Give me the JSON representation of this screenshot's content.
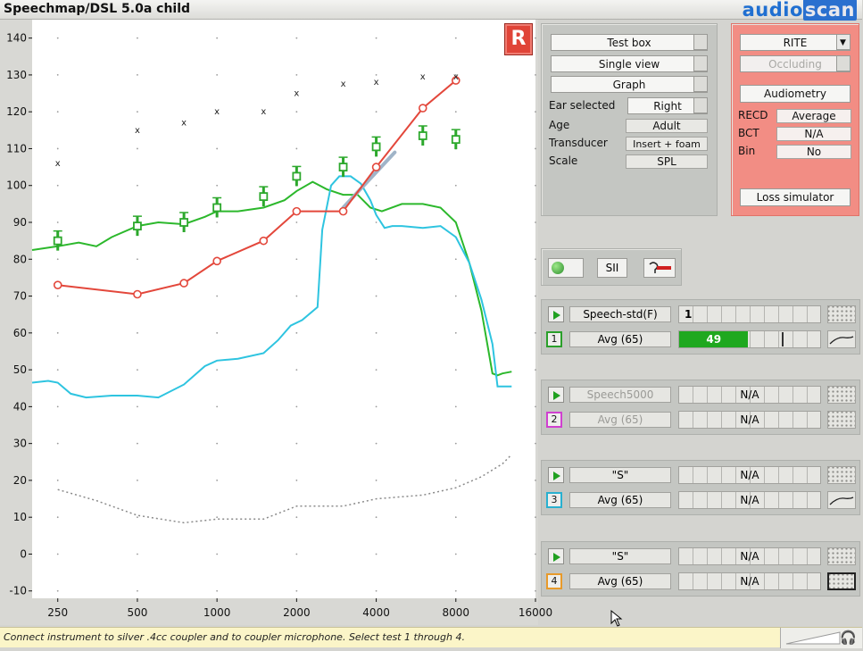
{
  "app": {
    "title": "Speechmap/DSL 5.0a child",
    "logo_a": "audio",
    "logo_b": "scan"
  },
  "chart_data": {
    "type": "line",
    "xscale": "log",
    "xlim": [
      200,
      16000
    ],
    "ylim": [
      -12,
      145
    ],
    "x_ticks": [
      250,
      500,
      1000,
      2000,
      4000,
      8000,
      16000
    ],
    "x_tick_labels": [
      "250",
      "500",
      "1000",
      "2000",
      "4000",
      "8000",
      "16000"
    ],
    "y_ticks": [
      -10,
      0,
      10,
      20,
      30,
      40,
      50,
      60,
      70,
      80,
      90,
      100,
      110,
      120,
      130,
      140
    ],
    "grid": true,
    "series": [
      {
        "role": "ucl_markers",
        "color": "#222222",
        "marker": "x",
        "x": [
          250,
          500,
          750,
          1000,
          1500,
          2000,
          3000,
          4000,
          6000,
          8000
        ],
        "y": [
          106,
          115,
          117,
          120,
          120,
          125,
          127.5,
          128,
          129.5,
          129.5
        ]
      },
      {
        "role": "targets",
        "color": "#2ca82c",
        "marker": "plus",
        "x": [
          250,
          500,
          750,
          1000,
          1500,
          2000,
          3000,
          4000,
          6000,
          8000
        ],
        "y": [
          85,
          89,
          90,
          94,
          97,
          102.5,
          105,
          110.5,
          113.5,
          112.5
        ]
      },
      {
        "role": "threshold",
        "color": "#e3473b",
        "marker": "circle",
        "x": [
          250,
          500,
          750,
          1000,
          1500,
          2000,
          3000,
          4000,
          6000,
          8000
        ],
        "y": [
          73,
          70.5,
          73.5,
          79.5,
          85,
          93,
          93,
          105,
          121,
          128.5
        ]
      },
      {
        "role": "aided_speech",
        "color": "#2cb82c",
        "x": [
          200,
          250,
          300,
          350,
          400,
          500,
          600,
          750,
          900,
          1000,
          1200,
          1500,
          1800,
          2000,
          2300,
          2600,
          3000,
          3400,
          3800,
          4200,
          5000,
          6000,
          7000,
          8000,
          9000,
          10000,
          11000,
          11500,
          12000,
          13000
        ],
        "y": [
          82.5,
          83.5,
          84.5,
          83.5,
          86,
          89,
          90,
          89.5,
          91.5,
          93,
          93,
          94,
          96,
          98.5,
          101,
          99,
          97.5,
          97.5,
          94,
          93,
          95,
          95,
          94,
          90,
          79,
          66,
          49,
          48.5,
          49,
          49.5
        ]
      },
      {
        "role": "unaided_speech",
        "color": "#2ec4e0",
        "x": [
          200,
          230,
          250,
          280,
          320,
          400,
          500,
          600,
          750,
          900,
          1000,
          1200,
          1500,
          1700,
          1900,
          2100,
          2400,
          2500,
          2700,
          2900,
          3200,
          3500,
          3800,
          4000,
          4300,
          4600,
          5000,
          6000,
          7000,
          8000,
          9000,
          10000,
          11000,
          11500,
          12000,
          13000
        ],
        "y": [
          46.5,
          47,
          46.5,
          43.5,
          42.5,
          43,
          43,
          42.5,
          46,
          51,
          52.5,
          53,
          54.5,
          58,
          62,
          63.5,
          67,
          88,
          100,
          102.5,
          102.5,
          100.5,
          96,
          92,
          88.5,
          89,
          89,
          88.5,
          89,
          86,
          79,
          69,
          57,
          45.5,
          45.5,
          45.5
        ]
      },
      {
        "role": "noise_floor",
        "color": "#8a8a8a",
        "dashed": true,
        "x": [
          250,
          350,
          500,
          750,
          1000,
          1500,
          2000,
          3000,
          4000,
          6000,
          8000,
          10000,
          12000,
          13000
        ],
        "y": [
          17.5,
          14.5,
          10.5,
          8.5,
          9.5,
          9.5,
          13,
          13,
          15,
          16,
          18,
          21,
          24.5,
          27
        ]
      }
    ],
    "hint_segment": {
      "color": "#a0b4c8",
      "x": [
        3000,
        4700
      ],
      "y": [
        94,
        109
      ]
    }
  },
  "ear_badge": "R",
  "setup": {
    "buttons": [
      "Test box",
      "Single view",
      "Graph"
    ],
    "ear_selected_label": "Ear selected",
    "ear_selected_value": "Right",
    "age_label": "Age",
    "age_value": "Adult",
    "transducer_label": "Transducer",
    "transducer_value": "Insert + foam",
    "scale_label": "Scale",
    "scale_value": "SPL"
  },
  "recd": {
    "style_select": "RITE",
    "occluding": "Occluding",
    "audiometry": "Audiometry",
    "recd_label": "RECD",
    "recd_value": "Average",
    "bct_label": "BCT",
    "bct_value": "N/A",
    "bin_label": "Bin",
    "bin_value": "No",
    "loss_sim": "Loss simulator"
  },
  "tools": {
    "sii": "SII"
  },
  "tests": [
    {
      "number": "1",
      "color": "#2aa02a",
      "stimulus": "Speech-std(F)",
      "stimulus_dim": false,
      "stim_meter": "1",
      "level": "Avg (65)",
      "level_dim": false,
      "result": "49",
      "result_fill": 0.49,
      "curve_icon": true
    },
    {
      "number": "2",
      "color": "#d040d0",
      "stimulus": "Speech5000",
      "stimulus_dim": true,
      "stim_meter": "N/A",
      "level": "Avg (65)",
      "level_dim": true,
      "result": "",
      "result_fill": 0,
      "curve_icon": false
    },
    {
      "number": "3",
      "color": "#28b0d0",
      "stimulus": "\"S\"",
      "stimulus_dim": false,
      "stim_meter": "N/A",
      "level": "Avg (65)",
      "level_dim": false,
      "result": "",
      "result_fill": 0,
      "curve_icon": true
    },
    {
      "number": "4",
      "color": "#e89a2a",
      "stimulus": "\"S\"",
      "stimulus_dim": false,
      "stim_meter": "N/A",
      "level": "Avg (65)",
      "level_dim": false,
      "result": "N/A",
      "result_fill": 0,
      "curve_icon": false
    }
  ],
  "status": "Connect instrument to silver .4cc coupler and to coupler microphone. Select test 1 through 4."
}
